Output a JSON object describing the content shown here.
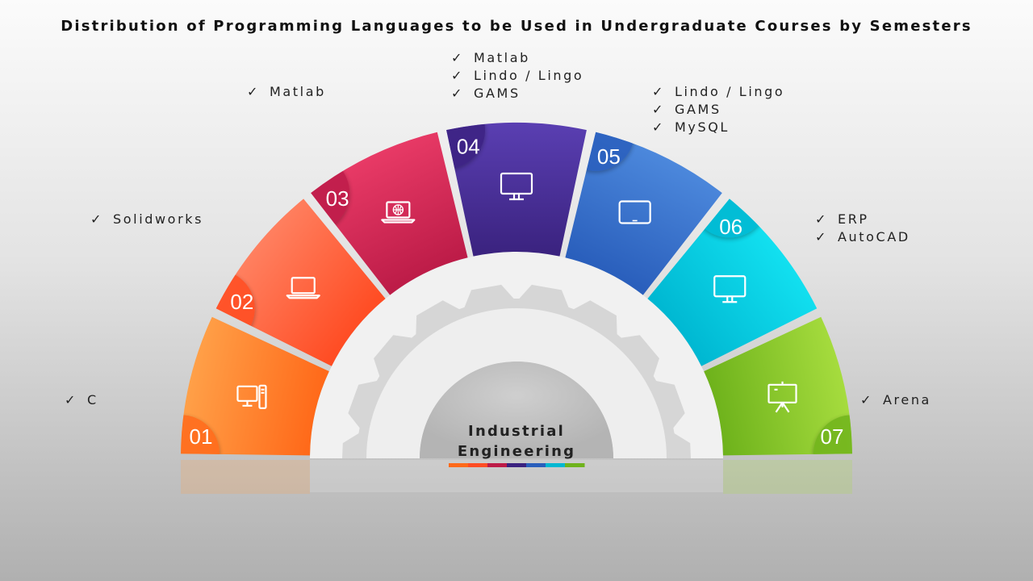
{
  "title": "Distribution of Programming Languages to be Used in Undergraduate Courses by Semesters",
  "center_label": [
    "Industrial",
    "Engineering"
  ],
  "check_mark": "✓",
  "semesters": [
    {
      "number": "01",
      "color_light": "#ffa048",
      "color_dark": "#ff6a1a",
      "icon": "desktop-computer-icon",
      "languages": [
        "C"
      ]
    },
    {
      "number": "02",
      "color_light": "#ff8060",
      "color_dark": "#ff4d24",
      "icon": "laptop-icon",
      "languages": [
        "Solidworks"
      ]
    },
    {
      "number": "03",
      "color_light": "#e83a66",
      "color_dark": "#bd1c48",
      "icon": "laptop-globe-icon",
      "languages": [
        "Matlab"
      ]
    },
    {
      "number": "04",
      "color_light": "#5a3fb2",
      "color_dark": "#3b2380",
      "icon": "monitor-icon",
      "languages": [
        "Matlab",
        "Lindo / Lingo",
        "GAMS"
      ]
    },
    {
      "number": "05",
      "color_light": "#4c88dc",
      "color_dark": "#2a5fbc",
      "icon": "tablet-icon",
      "languages": [
        "Lindo / Lingo",
        "GAMS",
        "MySQL"
      ]
    },
    {
      "number": "06",
      "color_light": "#12e0f0",
      "color_dark": "#00b8d2",
      "icon": "monitor-icon",
      "languages": [
        "ERP",
        "AutoCAD"
      ]
    },
    {
      "number": "07",
      "color_light": "#a6dc3e",
      "color_dark": "#6fb31c",
      "icon": "presentation-board-icon",
      "languages": [
        "Arena"
      ]
    }
  ]
}
